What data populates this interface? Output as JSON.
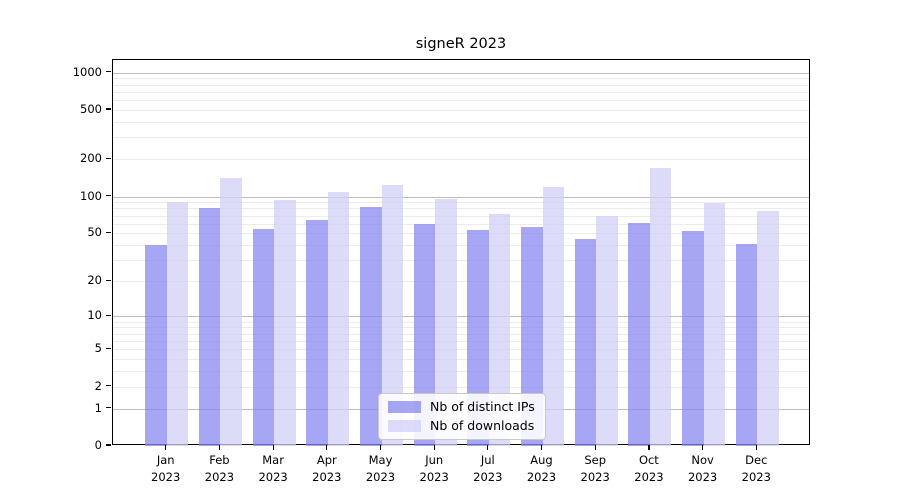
{
  "chart_data": {
    "type": "bar",
    "title": "signeR 2023",
    "categories": [
      "Jan",
      "Feb",
      "Mar",
      "Apr",
      "May",
      "Jun",
      "Jul",
      "Aug",
      "Sep",
      "Oct",
      "Nov",
      "Dec"
    ],
    "x_year": "2023",
    "series": [
      {
        "key": "distinct-ips",
        "name": "Nb of distinct IPs",
        "color": "rgba(136,136,240,0.75)",
        "values": [
          40,
          80,
          54,
          64,
          82,
          60,
          53,
          56,
          45,
          61,
          52,
          41
        ]
      },
      {
        "key": "downloads",
        "name": "Nb of downloads",
        "color": "rgba(208,208,247,0.75)",
        "values": [
          90,
          140,
          94,
          108,
          125,
          95,
          72,
          120,
          70,
          170,
          89,
          76
        ]
      }
    ],
    "y_ticks": [
      0,
      1,
      2,
      5,
      10,
      20,
      50,
      100,
      200,
      500,
      1000
    ],
    "y_scale": "log10(value+1)",
    "ylim": [
      0,
      1260
    ],
    "grid": true,
    "legend_position": "lower center",
    "colors": {
      "grid_major": "#bdbdbd",
      "grid_minor": "#ececec",
      "spine": "#000000",
      "background": "#ffffff"
    }
  }
}
